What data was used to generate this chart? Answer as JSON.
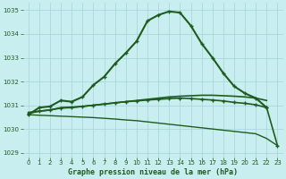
{
  "title": "Graphe pression niveau de la mer (hPa)",
  "background_color": "#c8eef0",
  "grid_color": "#a8d8dc",
  "line_color": "#1e5c1e",
  "xlim": [
    -0.5,
    23.5
  ],
  "ylim": [
    1028.8,
    1035.3
  ],
  "yticks": [
    1029,
    1030,
    1031,
    1032,
    1033,
    1034,
    1035
  ],
  "xticks": [
    0,
    1,
    2,
    3,
    4,
    5,
    6,
    7,
    8,
    9,
    10,
    11,
    12,
    13,
    14,
    15,
    16,
    17,
    18,
    19,
    20,
    21,
    22,
    23
  ],
  "series": [
    {
      "x": [
        0,
        1,
        2,
        3,
        4,
        5,
        6,
        7,
        8,
        9,
        10,
        11,
        12,
        13,
        14,
        15,
        16,
        17,
        18,
        19,
        20,
        21,
        22,
        23
      ],
      "y": [
        1030.6,
        1030.9,
        1030.95,
        1031.2,
        1031.15,
        1031.35,
        1031.85,
        1032.2,
        1032.75,
        1033.2,
        1033.7,
        1034.55,
        1034.8,
        1034.95,
        1034.9,
        1034.35,
        1033.6,
        1033.0,
        1032.35,
        1031.8,
        1031.5,
        1031.3,
        1030.9,
        null
      ],
      "marker": true,
      "lw": 1.5
    },
    {
      "x": [
        0,
        1,
        2,
        3,
        4,
        5,
        6,
        7,
        8,
        9,
        10,
        11,
        12,
        13,
        14,
        15,
        16,
        17,
        18,
        19,
        20,
        21,
        22,
        23
      ],
      "y": [
        1030.7,
        1030.75,
        1030.8,
        1030.9,
        1030.92,
        1030.95,
        1031.0,
        1031.05,
        1031.1,
        1031.15,
        1031.2,
        1031.25,
        1031.3,
        1031.35,
        1031.38,
        1031.4,
        1031.42,
        1031.42,
        1031.4,
        1031.38,
        1031.35,
        1031.3,
        1031.2,
        null
      ],
      "marker": false,
      "lw": 1.2
    },
    {
      "x": [
        0,
        1,
        2,
        3,
        4,
        5,
        6,
        7,
        8,
        9,
        10,
        11,
        12,
        13,
        14,
        15,
        16,
        17,
        18,
        19,
        20,
        21,
        22,
        23
      ],
      "y": [
        1030.65,
        1030.75,
        1030.8,
        1030.88,
        1030.9,
        1030.95,
        1031.0,
        1031.05,
        1031.1,
        1031.15,
        1031.18,
        1031.22,
        1031.25,
        1031.28,
        1031.3,
        1031.28,
        1031.25,
        1031.22,
        1031.18,
        1031.12,
        1031.08,
        1031.02,
        1030.9,
        1029.3
      ],
      "marker": true,
      "lw": 1.2
    },
    {
      "x": [
        0,
        1,
        2,
        3,
        4,
        5,
        6,
        7,
        8,
        9,
        10,
        11,
        12,
        13,
        14,
        15,
        16,
        17,
        18,
        19,
        20,
        21,
        22,
        23
      ],
      "y": [
        1030.6,
        1030.58,
        1030.56,
        1030.54,
        1030.52,
        1030.5,
        1030.48,
        1030.45,
        1030.42,
        1030.38,
        1030.35,
        1030.3,
        1030.25,
        1030.2,
        1030.15,
        1030.1,
        1030.05,
        1030.0,
        1029.95,
        1029.9,
        1029.85,
        1029.8,
        1029.6,
        1029.3
      ],
      "marker": false,
      "lw": 1.0
    }
  ]
}
